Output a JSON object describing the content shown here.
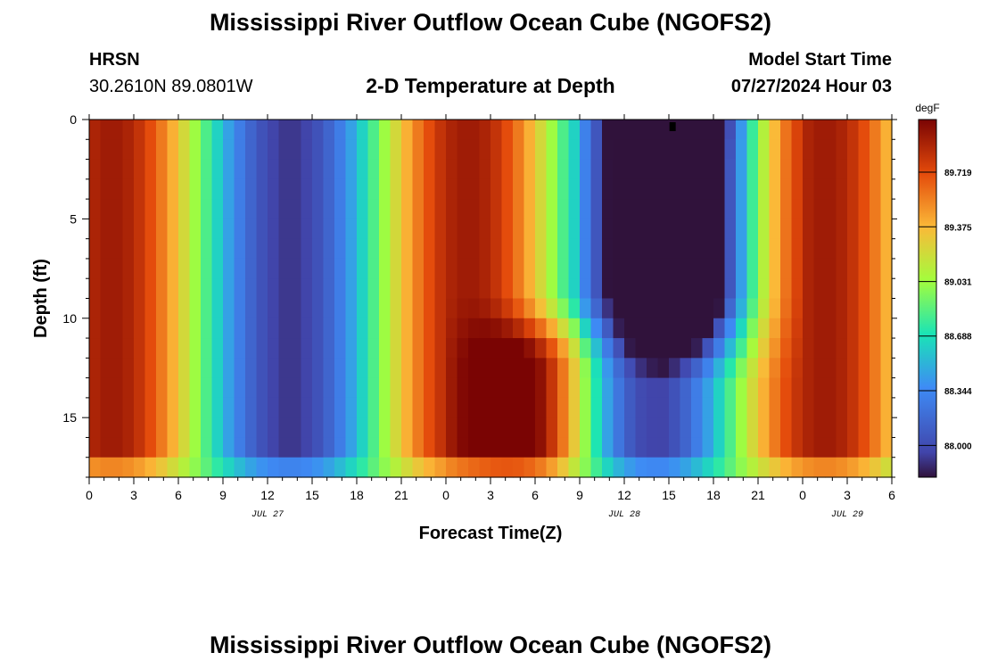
{
  "header": {
    "title": "Mississippi River Outflow Ocean Cube (NGOFS2)",
    "station_code": "HRSN",
    "station_coords": "30.2610N  89.0801W",
    "plot_title": "2-D Temperature at Depth",
    "model_start_label": "Model Start Time",
    "model_start_value": "07/27/2024 Hour 03"
  },
  "footer": {
    "title": "Mississippi River Outflow Ocean Cube (NGOFS2)"
  },
  "chart_data": {
    "type": "heatmap",
    "xlabel": "Forecast Time(Z)",
    "ylabel": "Depth (ft)",
    "x_range_hours": [
      0,
      54
    ],
    "x_ticks": [
      {
        "hour": 0,
        "label": "0"
      },
      {
        "hour": 3,
        "label": "3"
      },
      {
        "hour": 6,
        "label": "6"
      },
      {
        "hour": 9,
        "label": "9"
      },
      {
        "hour": 12,
        "label": "12"
      },
      {
        "hour": 15,
        "label": "15"
      },
      {
        "hour": 18,
        "label": "18"
      },
      {
        "hour": 21,
        "label": "21"
      },
      {
        "hour": 24,
        "label": "0"
      },
      {
        "hour": 27,
        "label": "3"
      },
      {
        "hour": 30,
        "label": "6"
      },
      {
        "hour": 33,
        "label": "9"
      },
      {
        "hour": 36,
        "label": "12"
      },
      {
        "hour": 39,
        "label": "15"
      },
      {
        "hour": 42,
        "label": "18"
      },
      {
        "hour": 45,
        "label": "21"
      },
      {
        "hour": 48,
        "label": "0"
      },
      {
        "hour": 51,
        "label": "3"
      },
      {
        "hour": 54,
        "label": "6"
      }
    ],
    "date_labels": [
      {
        "hour": 12,
        "label": "JUL 27"
      },
      {
        "hour": 36,
        "label": "JUL 28"
      },
      {
        "hour": 51,
        "label": "JUL 29"
      }
    ],
    "y_range_ft": [
      0,
      18
    ],
    "y_ticks": [
      0,
      5,
      10,
      15
    ],
    "colorbar": {
      "unit": "degF",
      "range": [
        87.8,
        90.05
      ],
      "ticks": [
        "88.000",
        "88.344",
        "88.688",
        "89.031",
        "89.375",
        "89.719"
      ]
    },
    "field_description_points": [
      {
        "hour": 2,
        "depth_ft": 13,
        "value": 90.0
      },
      {
        "hour": 15,
        "depth_ft": 2,
        "value": 88.0
      },
      {
        "hour": 27,
        "depth_ft": 13,
        "value": 89.95
      },
      {
        "hour": 40,
        "depth_ft": 1,
        "value": 87.8
      },
      {
        "hour": 48,
        "depth_ft": 13,
        "value": 90.0
      }
    ]
  }
}
